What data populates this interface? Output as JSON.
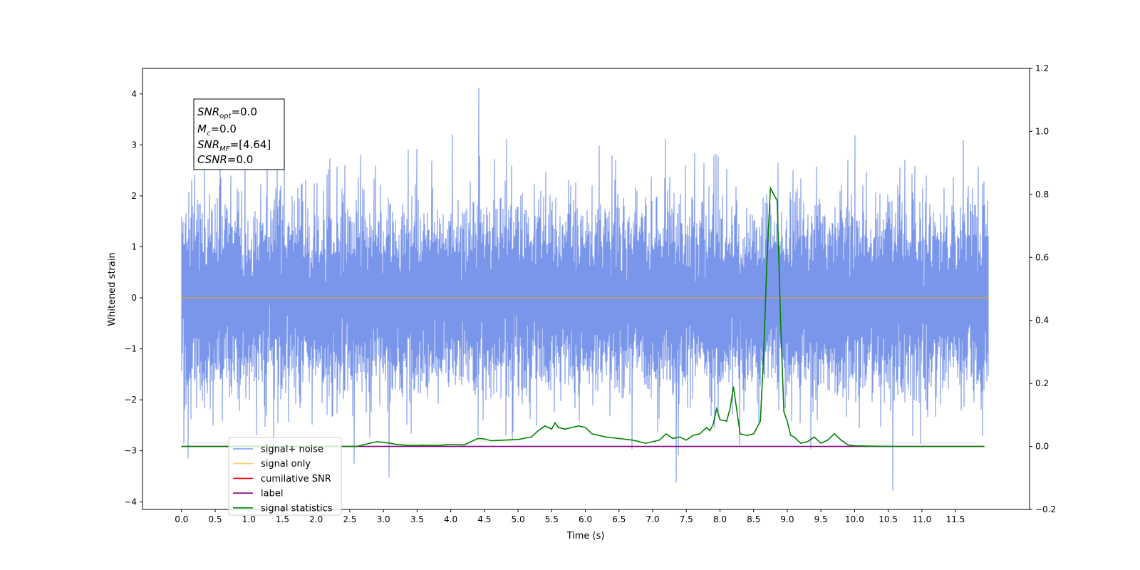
{
  "chart_data": {
    "type": "line",
    "xlabel": "Time (s)",
    "ylabel": "Whitened strain",
    "xlim": [
      -0.58,
      12.6
    ],
    "ylim": [
      -4.15,
      4.5
    ],
    "ylim_right": [
      -0.2,
      1.2
    ],
    "x_ticks": [
      "0.0",
      "0.5",
      "1.0",
      "1.5",
      "2.0",
      "2.5",
      "3.0",
      "3.5",
      "4.0",
      "4.5",
      "5.0",
      "5.5",
      "6.0",
      "6.5",
      "7.0",
      "7.5",
      "8.0",
      "8.5",
      "9.0",
      "9.5",
      "10.0",
      "10.5",
      "11.0",
      "11.5"
    ],
    "y_ticks_left": [
      "4",
      "3",
      "2",
      "1",
      "0",
      "−1",
      "−2",
      "−3",
      "−4"
    ],
    "y_ticks_right": [
      "1.2",
      "1.0",
      "0.8",
      "0.6",
      "0.4",
      "0.2",
      "0.0",
      "−0.2"
    ],
    "grid": false,
    "legend_position": "lower-left",
    "annotation": {
      "snr_opt": {
        "label": "SNR",
        "sub": "opt",
        "value": "=0.0"
      },
      "mc": {
        "label": "M",
        "sub": "c",
        "value": "=0.0"
      },
      "snr_mf": {
        "label": "SNR",
        "sub": "MF",
        "value": "=[4.64]"
      },
      "csnr": {
        "label": "CSNR",
        "value": "=0.0"
      }
    },
    "series": [
      {
        "name": "signal+ noise",
        "color": "#4169e1",
        "axis": "left",
        "kind": "noise",
        "x_range": [
          0.0,
          11.99
        ],
        "std": 0.95,
        "notable_peaks": [
          [
            4.42,
            4.12
          ],
          [
            0.1,
            -3.15
          ],
          [
            7.35,
            -3.62
          ],
          [
            10.57,
            -3.78
          ],
          [
            3.08,
            -3.52
          ]
        ]
      },
      {
        "name": "signal only",
        "color": "#ffa500",
        "axis": "left",
        "x": [
          0.0,
          11.99
        ],
        "y": [
          0.0,
          0.0
        ]
      },
      {
        "name": "cumilative SNR",
        "color": "#ff0000",
        "axis": "left",
        "x": [],
        "y": []
      },
      {
        "name": "label",
        "color": "#800080",
        "axis": "right",
        "x": [
          0.0,
          11.93
        ],
        "y": [
          0.0,
          0.0
        ]
      },
      {
        "name": "signal statistics",
        "color": "#008000",
        "axis": "right",
        "x": [
          0.0,
          2.6,
          2.8,
          2.9,
          3.0,
          3.1,
          3.2,
          3.4,
          3.6,
          3.8,
          4.0,
          4.2,
          4.4,
          4.5,
          4.6,
          4.8,
          5.0,
          5.2,
          5.3,
          5.4,
          5.5,
          5.55,
          5.6,
          5.7,
          5.8,
          5.9,
          6.0,
          6.1,
          6.3,
          6.5,
          6.7,
          6.9,
          7.1,
          7.2,
          7.3,
          7.4,
          7.5,
          7.6,
          7.7,
          7.8,
          7.85,
          7.9,
          7.95,
          8.0,
          8.1,
          8.15,
          8.2,
          8.3,
          8.4,
          8.5,
          8.6,
          8.65,
          8.7,
          8.75,
          8.8,
          8.85,
          8.9,
          8.95,
          9.0,
          9.05,
          9.1,
          9.2,
          9.3,
          9.4,
          9.5,
          9.6,
          9.7,
          9.8,
          9.9,
          10.0,
          10.5,
          11.0,
          11.5,
          11.93
        ],
        "y": [
          0.0,
          0.0,
          0.01,
          0.015,
          0.013,
          0.01,
          0.006,
          0.003,
          0.004,
          0.003,
          0.006,
          0.005,
          0.025,
          0.024,
          0.018,
          0.02,
          0.022,
          0.03,
          0.05,
          0.065,
          0.055,
          0.075,
          0.06,
          0.055,
          0.06,
          0.065,
          0.06,
          0.04,
          0.03,
          0.025,
          0.02,
          0.01,
          0.02,
          0.04,
          0.025,
          0.03,
          0.02,
          0.035,
          0.04,
          0.06,
          0.05,
          0.07,
          0.12,
          0.085,
          0.08,
          0.12,
          0.19,
          0.04,
          0.035,
          0.04,
          0.08,
          0.3,
          0.6,
          0.82,
          0.8,
          0.78,
          0.4,
          0.11,
          0.08,
          0.035,
          0.03,
          0.01,
          0.015,
          0.03,
          0.01,
          0.02,
          0.04,
          0.02,
          0.005,
          0.002,
          0.0,
          0.0,
          0.0,
          0.0
        ]
      }
    ]
  }
}
